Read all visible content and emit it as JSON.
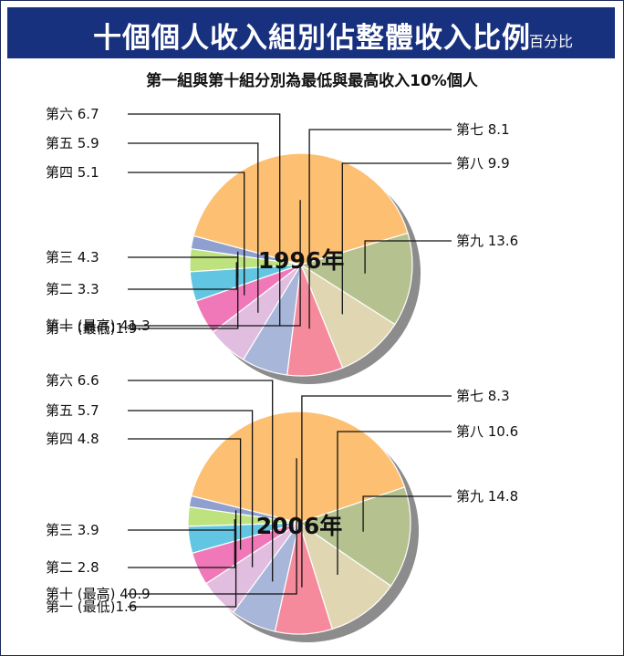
{
  "header": {
    "title": "十個個人收入組別佔整體收入比例",
    "unit": "百分比"
  },
  "subtitle": "第一組與第十組分別為最低與最高收入10%個人",
  "colors": {
    "header_bg": "#18317e",
    "shadow": "#8c8c8c",
    "slices": [
      "#8e9fd0",
      "#bde27e",
      "#62c6e2",
      "#f078b8",
      "#e1bde0",
      "#a8b6da",
      "#f58a9c",
      "#e0d7b2",
      "#b5c28f",
      "#fdbf72"
    ]
  },
  "chart_data": [
    {
      "type": "pie",
      "title": "1996年",
      "categories": [
        "第一",
        "第二",
        "第三",
        "第四",
        "第五",
        "第六",
        "第七",
        "第八",
        "第九",
        "第十"
      ],
      "values": [
        1.9,
        3.3,
        4.3,
        5.1,
        5.9,
        6.7,
        8.1,
        9.9,
        13.6,
        41.3
      ],
      "labels": [
        "第一 (最低)1.9",
        "第二 3.3",
        "第三 4.3",
        "第四 5.1",
        "第五 5.9",
        "第六 6.7",
        "第七 8.1",
        "第八 9.9",
        "第九 13.6",
        "第十 (最高) 41.3"
      ]
    },
    {
      "type": "pie",
      "title": "2006年",
      "categories": [
        "第一",
        "第二",
        "第三",
        "第四",
        "第五",
        "第六",
        "第七",
        "第八",
        "第九",
        "第十"
      ],
      "values": [
        1.6,
        2.8,
        3.9,
        4.8,
        5.7,
        6.6,
        8.3,
        10.6,
        14.8,
        40.9
      ],
      "labels": [
        "第一 (最低)1.6",
        "第二 2.8",
        "第三 3.9",
        "第四 4.8",
        "第五 5.7",
        "第六 6.6",
        "第七 8.3",
        "第八 10.6",
        "第九 14.8",
        "第十 (最高) 40.9"
      ]
    }
  ]
}
